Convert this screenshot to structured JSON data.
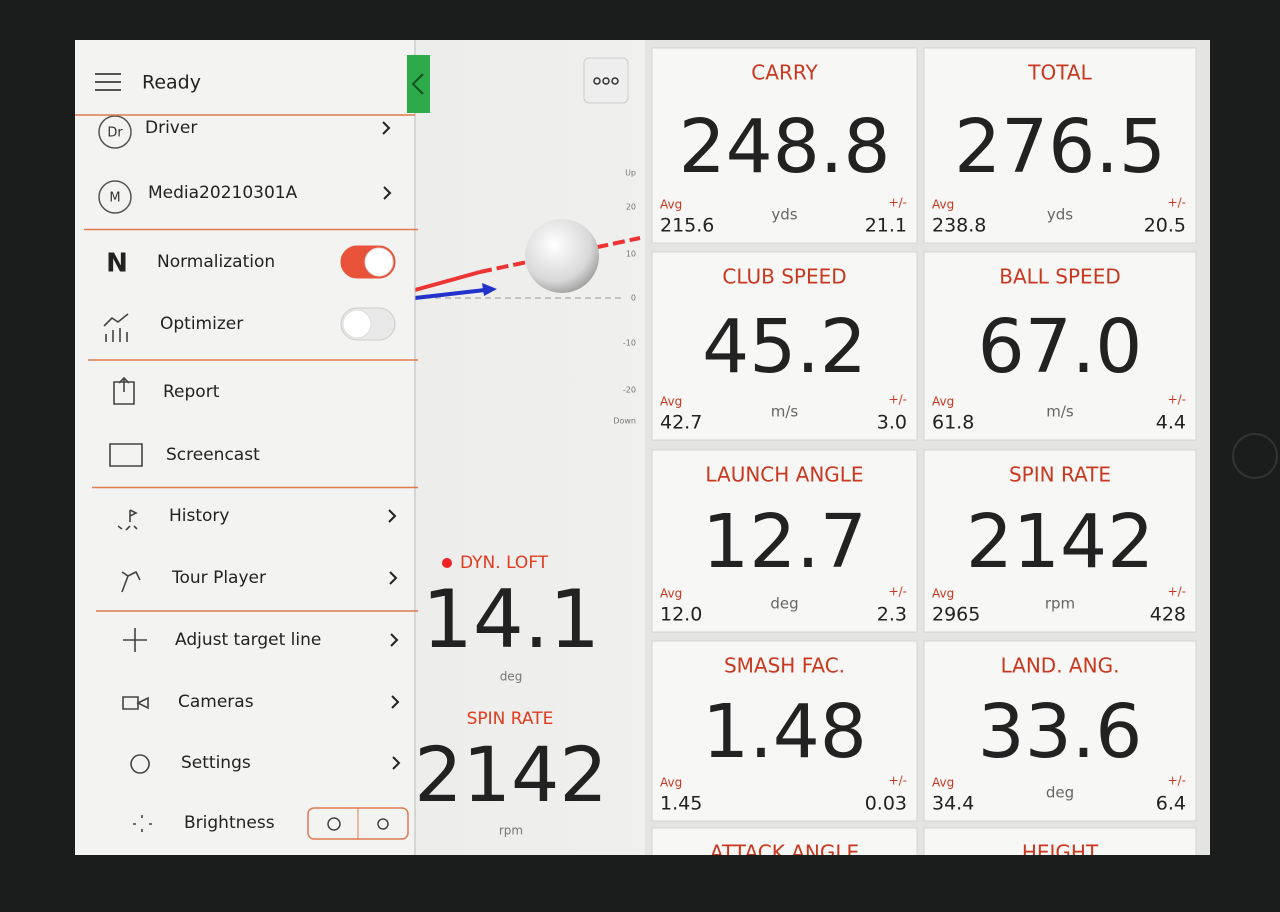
{
  "header": {
    "status": "Ready"
  },
  "menu": {
    "sections": [
      [
        {
          "badge": "Dr",
          "label": "Driver",
          "chevron": true
        },
        {
          "badge": "M",
          "label": "Media20210301A",
          "chevron": true
        }
      ],
      [
        {
          "letter": "N",
          "label": "Normalization",
          "toggle": true
        },
        {
          "label": "Optimizer",
          "toggle": false
        }
      ],
      [
        {
          "label": "Report"
        },
        {
          "label": "Screencast"
        }
      ],
      [
        {
          "label": "History",
          "chevron": true
        },
        {
          "label": "Tour Player",
          "chevron": true
        }
      ],
      [
        {
          "label": "Adjust target line",
          "chevron": true
        },
        {
          "label": "Cameras",
          "chevron": true
        },
        {
          "label": "Settings",
          "chevron": true
        },
        {
          "label": "Brightness"
        }
      ]
    ]
  },
  "trajectory": {
    "axis_labels": [
      "Up",
      "20",
      "10",
      "0",
      "-10",
      "-20",
      "Down"
    ]
  },
  "live": [
    {
      "title": "DYN. LOFT",
      "value": "14.1",
      "unit": "deg"
    },
    {
      "title": "SPIN RATE",
      "value": "2142",
      "unit": "rpm"
    }
  ],
  "tiles": [
    {
      "title": "CARRY",
      "value": "248.8",
      "avg_label": "Avg",
      "avg": "215.6",
      "unit": "yds",
      "pm_label": "+/-",
      "pm": "21.1"
    },
    {
      "title": "TOTAL",
      "value": "276.5",
      "avg_label": "Avg",
      "avg": "238.8",
      "unit": "yds",
      "pm_label": "+/-",
      "pm": "20.5"
    },
    {
      "title": "CLUB SPEED",
      "value": "45.2",
      "avg_label": "Avg",
      "avg": "42.7",
      "unit": "m/s",
      "pm_label": "+/-",
      "pm": "3.0"
    },
    {
      "title": "BALL SPEED",
      "value": "67.0",
      "avg_label": "Avg",
      "avg": "61.8",
      "unit": "m/s",
      "pm_label": "+/-",
      "pm": "4.4"
    },
    {
      "title": "LAUNCH ANGLE",
      "value": "12.7",
      "avg_label": "Avg",
      "avg": "12.0",
      "unit": "deg",
      "pm_label": "+/-",
      "pm": "2.3"
    },
    {
      "title": "SPIN RATE",
      "value": "2142",
      "avg_label": "Avg",
      "avg": "2965",
      "unit": "rpm",
      "pm_label": "+/-",
      "pm": "428"
    },
    {
      "title": "SMASH FAC.",
      "value": "1.48",
      "avg_label": "Avg",
      "avg": "1.45",
      "unit": "",
      "pm_label": "+/-",
      "pm": "0.03"
    },
    {
      "title": "LAND. ANG.",
      "value": "33.6",
      "avg_label": "Avg",
      "avg": "34.4",
      "unit": "deg",
      "pm_label": "+/-",
      "pm": "6.4"
    },
    {
      "title": "ATTACK ANGLE"
    },
    {
      "title": "HEIGHT"
    }
  ]
}
